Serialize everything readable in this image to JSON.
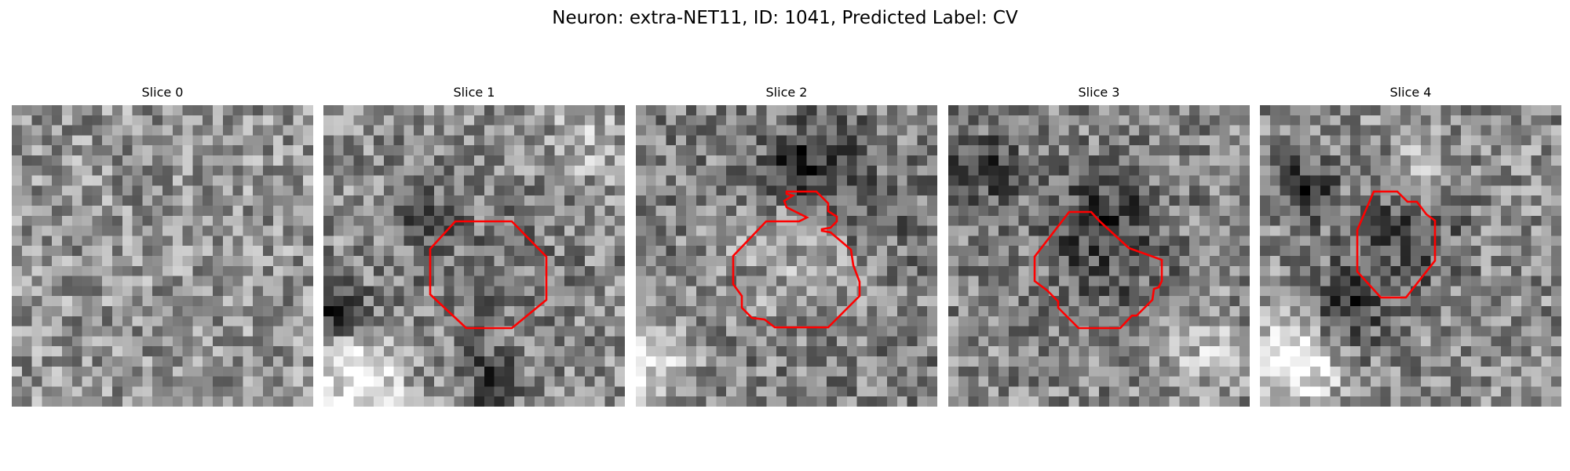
{
  "figure": {
    "title": "Neuron: extra-NET11, ID: 1041, Predicted Label: CV",
    "roi_color": "#ff0000",
    "colormap": "gray"
  },
  "panels": [
    {
      "title": "Slice 0",
      "has_roi": false
    },
    {
      "title": "Slice 1",
      "has_roi": true
    },
    {
      "title": "Slice 2",
      "has_roi": true
    },
    {
      "title": "Slice 3",
      "has_roi": true
    },
    {
      "title": "Slice 4",
      "has_roi": true
    }
  ]
}
